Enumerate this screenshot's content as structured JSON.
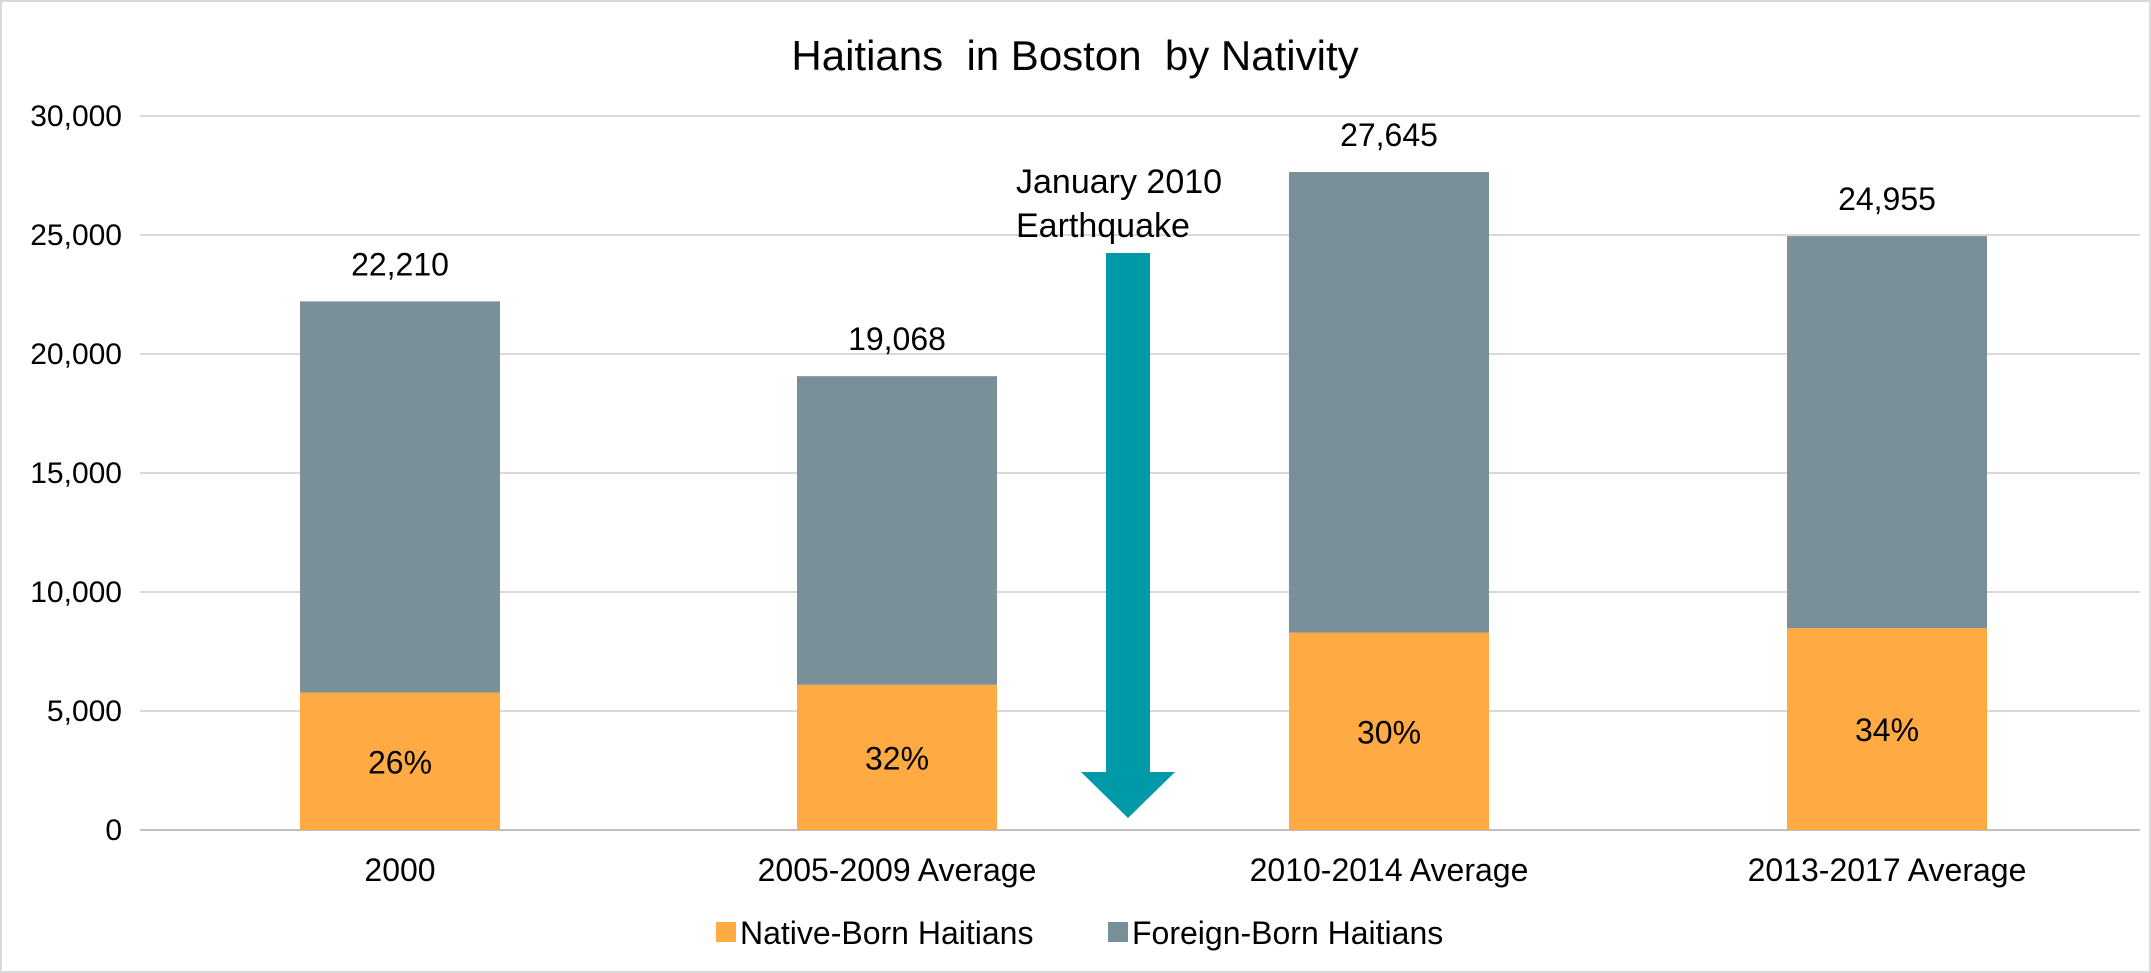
{
  "chart_data": {
    "type": "bar",
    "stacked": true,
    "title": "Haitians  in Boston  by Nativity",
    "categories": [
      "2000",
      "2005-2009 Average",
      "2010-2014 Average",
      "2013-2017 Average"
    ],
    "series": [
      {
        "name": "Native-Born Haitians",
        "values": [
          5775,
          6102,
          8294,
          8485
        ],
        "color": "#FFAA42"
      },
      {
        "name": "Foreign-Born Haitians",
        "values": [
          16435,
          12966,
          19351,
          16470
        ],
        "color": "#7A9099"
      }
    ],
    "totals": [
      "22,210",
      "19,068",
      "27,645",
      "24,955"
    ],
    "percent_labels": [
      "26%",
      "32%",
      "30%",
      "34%"
    ],
    "ylim": [
      0,
      30000
    ],
    "yticks": [
      0,
      5000,
      10000,
      15000,
      20000,
      25000,
      30000
    ],
    "ytick_labels": [
      "0",
      "5,000",
      "10,000",
      "15,000",
      "20,000",
      "25,000",
      "30,000"
    ],
    "grid": true,
    "legend_position": "bottom",
    "annotation": {
      "lines": [
        "January 2010",
        "Earthquake"
      ],
      "color": "#0099A8",
      "between": [
        "2005-2009 Average",
        "2010-2014 Average"
      ]
    }
  }
}
